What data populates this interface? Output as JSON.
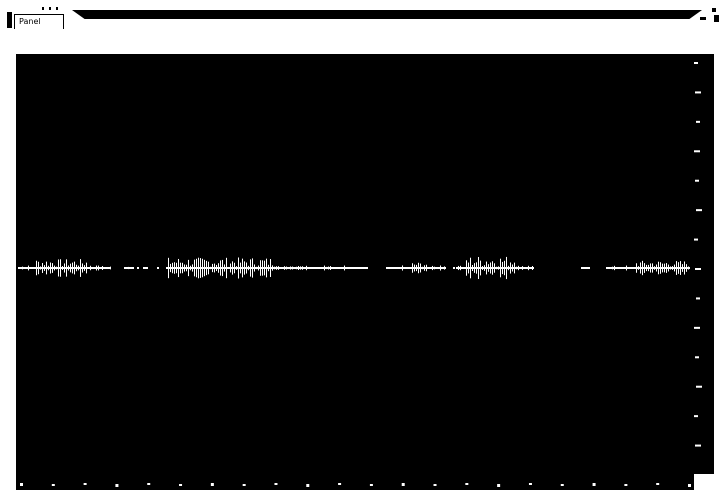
{
  "window": {
    "tab_label": "Panel"
  },
  "scope": {
    "background": "#000000",
    "trace_color": "#ffffff",
    "icon": "waveform-plot",
    "y_tick_count": 15,
    "x_tick_count": 22
  }
}
